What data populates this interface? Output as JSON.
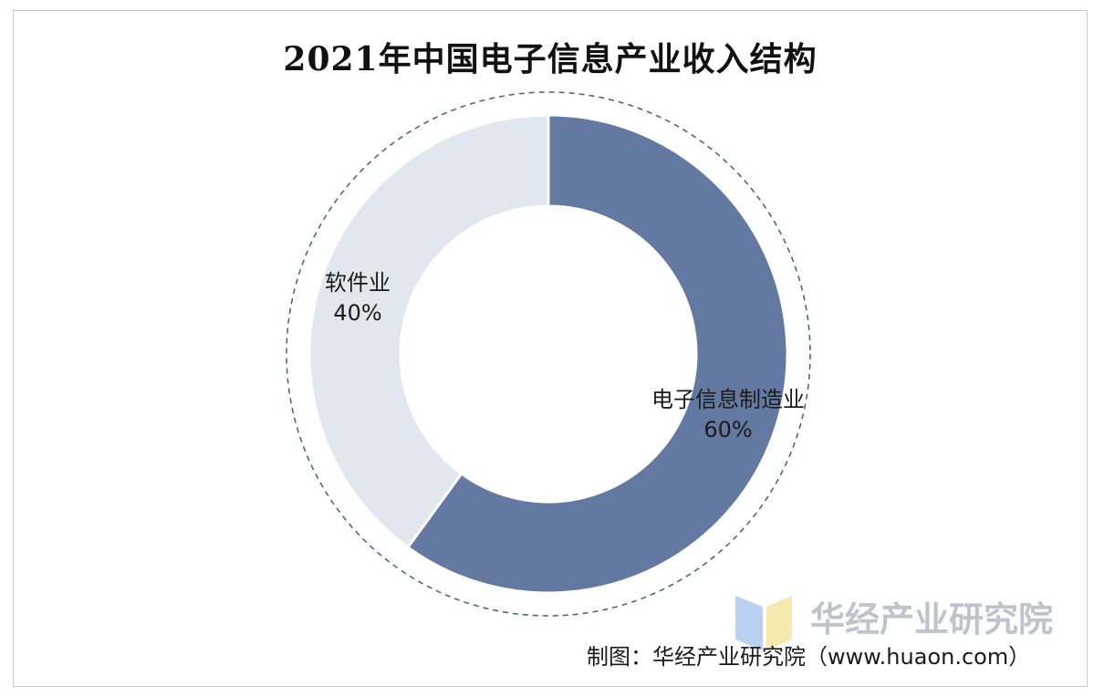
{
  "chart_data": {
    "type": "pie",
    "variant": "donut",
    "title": "2021年中国电子信息产业收入结构",
    "categories": [
      "电子信息制造业",
      "软件业"
    ],
    "values": [
      60,
      40
    ],
    "value_labels": [
      "60%",
      "40%"
    ],
    "unit": "%",
    "legend": "none",
    "colors": [
      "#6479a2",
      "#e1e6ef"
    ],
    "outline_color": "#4a5a80"
  },
  "watermark": {
    "text": "华经产业研究院"
  },
  "source": "制图：华经产业研究院（www.huaon.com）"
}
